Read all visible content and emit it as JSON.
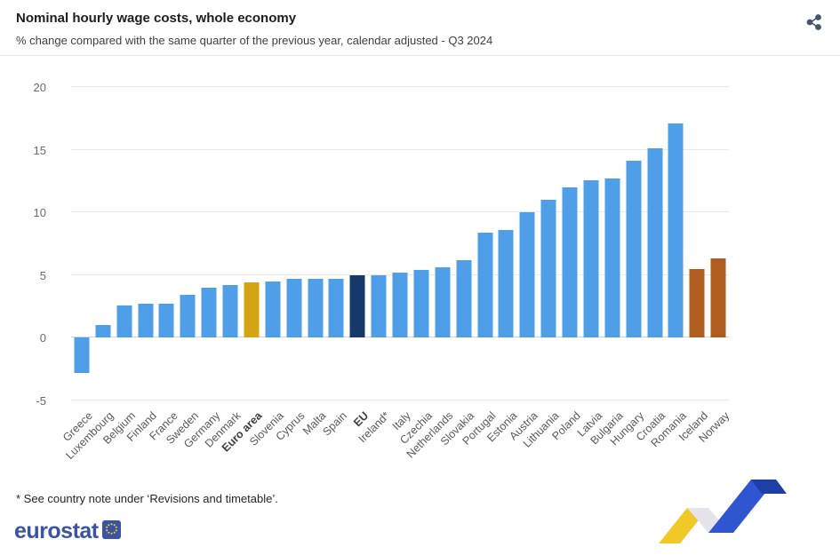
{
  "header": {
    "title": "Nominal hourly wage costs, whole economy",
    "subtitle": "% change compared with the same quarter of the previous year, calendar adjusted - Q3 2024"
  },
  "share": {
    "icon": "share-icon",
    "color": "#44546a"
  },
  "footer": {
    "footnote": "* See country note under ‘Revisions and timetable’.",
    "logo_text": "eurostat"
  },
  "chart_data": {
    "type": "bar",
    "title": "Nominal hourly wage costs, whole economy",
    "subtitle": "% change compared with the same quarter of the previous year, calendar adjusted - Q3 2024",
    "ylabel": "",
    "xlabel": "",
    "ylim": [
      -5,
      20
    ],
    "yticks": [
      -5,
      0,
      5,
      10,
      15,
      20
    ],
    "grid": true,
    "legend": "none",
    "colors": {
      "blue": "#4F9FE8",
      "gold": "#D4A513",
      "navy": "#17386B",
      "brown": "#AE5D1E"
    },
    "items": [
      {
        "label": "Greece",
        "value": -2.8,
        "color": "blue",
        "bold": false
      },
      {
        "label": "Luxembourg",
        "value": 1.0,
        "color": "blue",
        "bold": false
      },
      {
        "label": "Belgium",
        "value": 2.6,
        "color": "blue",
        "bold": false
      },
      {
        "label": "Finland",
        "value": 2.7,
        "color": "blue",
        "bold": false
      },
      {
        "label": "France",
        "value": 2.7,
        "color": "blue",
        "bold": false
      },
      {
        "label": "Sweden",
        "value": 3.4,
        "color": "blue",
        "bold": false
      },
      {
        "label": "Germany",
        "value": 4.0,
        "color": "blue",
        "bold": false
      },
      {
        "label": "Denmark",
        "value": 4.2,
        "color": "blue",
        "bold": false
      },
      {
        "label": "Euro area",
        "value": 4.4,
        "color": "gold",
        "bold": true
      },
      {
        "label": "Slovenia",
        "value": 4.5,
        "color": "blue",
        "bold": false
      },
      {
        "label": "Cyprus",
        "value": 4.7,
        "color": "blue",
        "bold": false
      },
      {
        "label": "Malta",
        "value": 4.7,
        "color": "blue",
        "bold": false
      },
      {
        "label": "Spain",
        "value": 4.7,
        "color": "blue",
        "bold": false
      },
      {
        "label": "EU",
        "value": 5.0,
        "color": "navy",
        "bold": true
      },
      {
        "label": "Ireland*",
        "value": 5.0,
        "color": "blue",
        "bold": false
      },
      {
        "label": "Italy",
        "value": 5.2,
        "color": "blue",
        "bold": false
      },
      {
        "label": "Czechia",
        "value": 5.4,
        "color": "blue",
        "bold": false
      },
      {
        "label": "Netherlands",
        "value": 5.6,
        "color": "blue",
        "bold": false
      },
      {
        "label": "Slovakia",
        "value": 6.2,
        "color": "blue",
        "bold": false
      },
      {
        "label": "Portugal",
        "value": 8.4,
        "color": "blue",
        "bold": false
      },
      {
        "label": "Estonia",
        "value": 8.6,
        "color": "blue",
        "bold": false
      },
      {
        "label": "Austria",
        "value": 10.0,
        "color": "blue",
        "bold": false
      },
      {
        "label": "Lithuania",
        "value": 11.0,
        "color": "blue",
        "bold": false
      },
      {
        "label": "Poland",
        "value": 12.0,
        "color": "blue",
        "bold": false
      },
      {
        "label": "Latvia",
        "value": 12.6,
        "color": "blue",
        "bold": false
      },
      {
        "label": "Bulgaria",
        "value": 12.7,
        "color": "blue",
        "bold": false
      },
      {
        "label": "Hungary",
        "value": 14.1,
        "color": "blue",
        "bold": false
      },
      {
        "label": "Croatia",
        "value": 15.1,
        "color": "blue",
        "bold": false
      },
      {
        "label": "Romania",
        "value": 17.1,
        "color": "blue",
        "bold": false
      },
      {
        "label": "Iceland",
        "value": 5.5,
        "color": "brown",
        "bold": false
      },
      {
        "label": "Norway",
        "value": 6.3,
        "color": "brown",
        "bold": false
      }
    ]
  }
}
